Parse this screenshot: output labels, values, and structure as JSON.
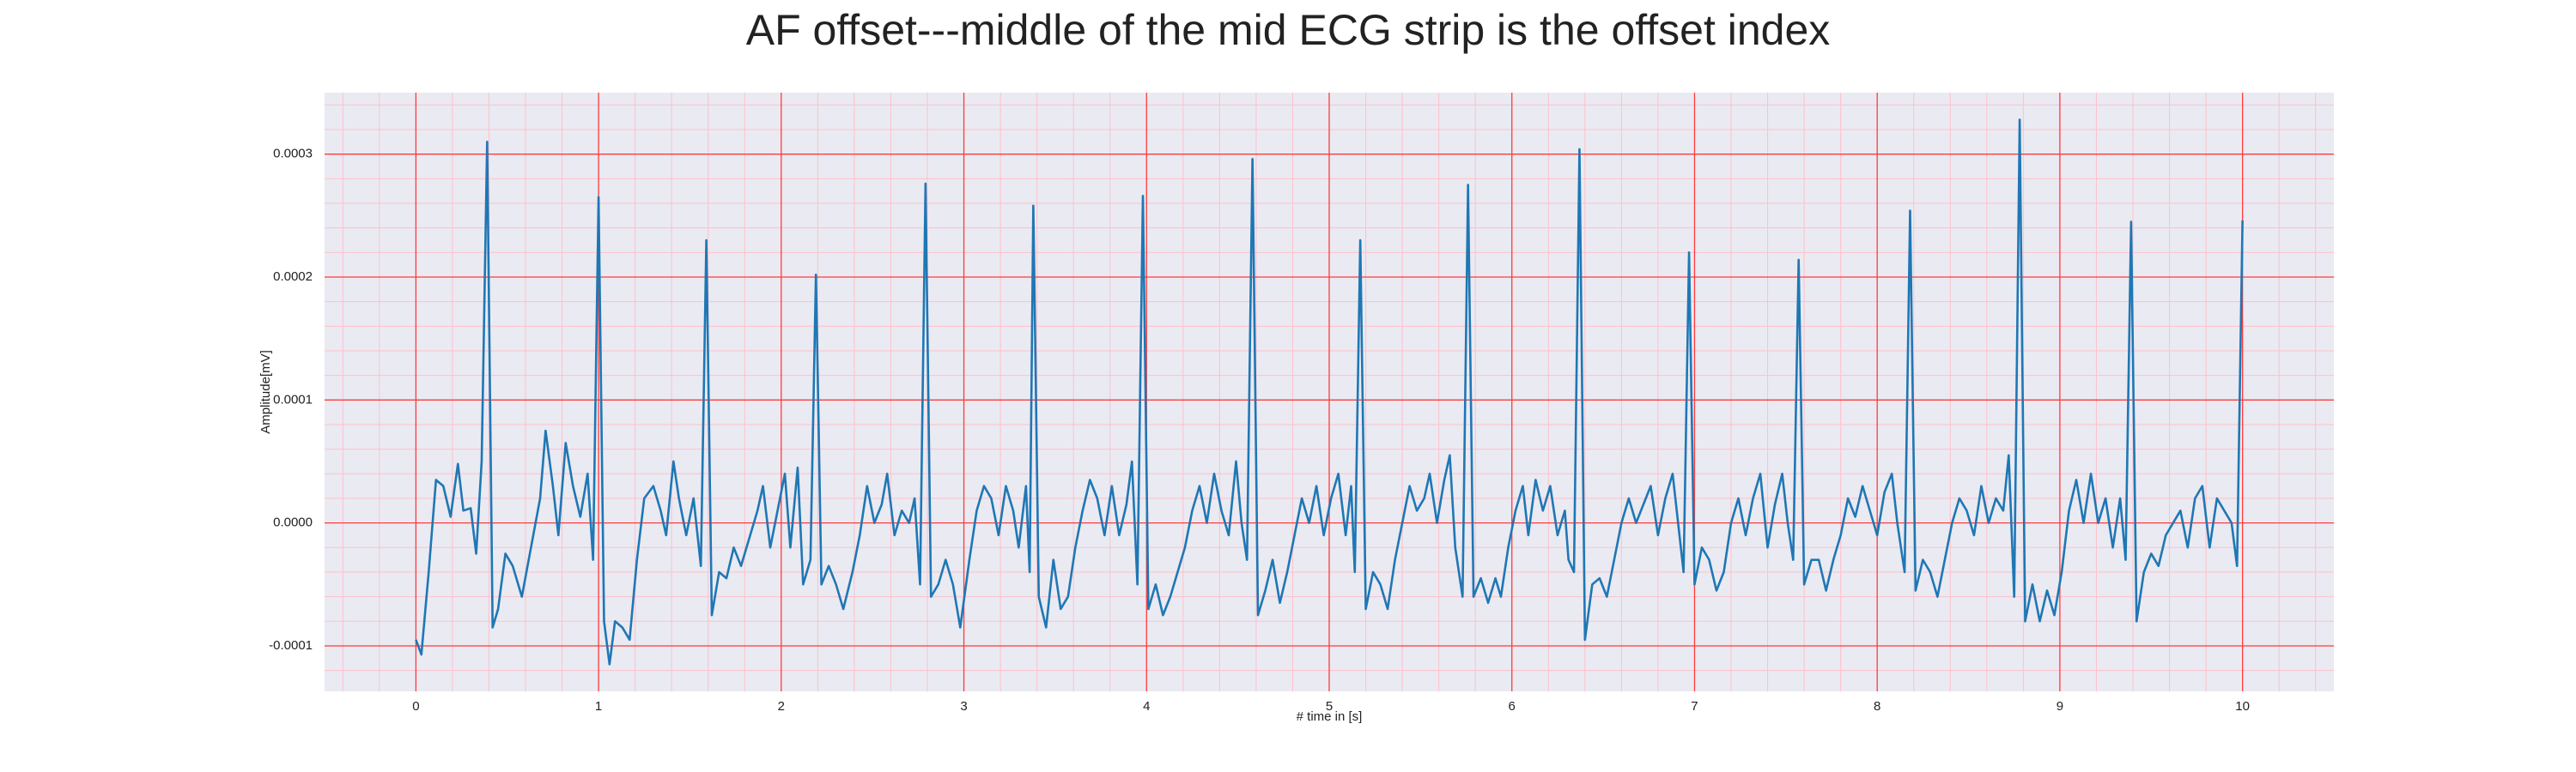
{
  "chart_data": {
    "type": "line",
    "title": "AF offset---middle of the mid ECG strip is the offset index",
    "xlabel": "# time in [s]",
    "ylabel": "Amplitude[mV]",
    "color": "#1f77b4",
    "grid": true,
    "minor_grid": true,
    "xlim": [
      -0.5,
      10.5
    ],
    "ylim": [
      -0.000137,
      0.00035
    ],
    "xticks": [
      0,
      1,
      2,
      3,
      4,
      5,
      6,
      7,
      8,
      9,
      10
    ],
    "yticks": [
      {
        "value": -0.0001,
        "label": "-0.0001"
      },
      {
        "value": 0,
        "label": "0.0000"
      },
      {
        "value": 0.0001,
        "label": "0.0001"
      },
      {
        "value": 0.0002,
        "label": "0.0002"
      },
      {
        "value": 0.0003,
        "label": "0.0003"
      }
    ],
    "x": [
      0.0,
      0.03,
      0.07,
      0.11,
      0.15,
      0.19,
      0.23,
      0.26,
      0.3,
      0.33,
      0.36,
      0.39,
      0.42,
      0.45,
      0.49,
      0.53,
      0.58,
      0.63,
      0.68,
      0.71,
      0.75,
      0.78,
      0.82,
      0.86,
      0.9,
      0.94,
      0.97,
      1.0,
      1.03,
      1.06,
      1.09,
      1.13,
      1.17,
      1.21,
      1.25,
      1.3,
      1.34,
      1.37,
      1.41,
      1.44,
      1.48,
      1.52,
      1.56,
      1.59,
      1.62,
      1.66,
      1.7,
      1.74,
      1.78,
      1.83,
      1.87,
      1.9,
      1.94,
      1.98,
      2.02,
      2.05,
      2.09,
      2.12,
      2.16,
      2.19,
      2.22,
      2.26,
      2.3,
      2.34,
      2.39,
      2.43,
      2.47,
      2.51,
      2.55,
      2.58,
      2.62,
      2.66,
      2.7,
      2.73,
      2.76,
      2.79,
      2.82,
      2.86,
      2.9,
      2.94,
      2.98,
      3.03,
      3.07,
      3.11,
      3.15,
      3.19,
      3.23,
      3.27,
      3.3,
      3.34,
      3.36,
      3.38,
      3.41,
      3.45,
      3.49,
      3.53,
      3.57,
      3.61,
      3.65,
      3.69,
      3.73,
      3.77,
      3.81,
      3.85,
      3.89,
      3.92,
      3.95,
      3.98,
      4.01,
      4.05,
      4.09,
      4.13,
      4.17,
      4.21,
      4.25,
      4.29,
      4.33,
      4.37,
      4.41,
      4.45,
      4.49,
      4.52,
      4.55,
      4.58,
      4.61,
      4.65,
      4.69,
      4.73,
      4.77,
      4.81,
      4.85,
      4.89,
      4.93,
      4.97,
      5.01,
      5.05,
      5.09,
      5.12,
      5.14,
      5.17,
      5.2,
      5.24,
      5.28,
      5.32,
      5.36,
      5.4,
      5.44,
      5.48,
      5.52,
      5.55,
      5.59,
      5.63,
      5.66,
      5.69,
      5.73,
      5.76,
      5.79,
      5.83,
      5.87,
      5.91,
      5.94,
      5.98,
      6.02,
      6.06,
      6.09,
      6.13,
      6.17,
      6.21,
      6.25,
      6.29,
      6.31,
      6.34,
      6.37,
      6.4,
      6.44,
      6.48,
      6.52,
      6.56,
      6.6,
      6.64,
      6.68,
      6.72,
      6.76,
      6.8,
      6.84,
      6.88,
      6.91,
      6.94,
      6.97,
      7.0,
      7.04,
      7.08,
      7.12,
      7.16,
      7.2,
      7.24,
      7.28,
      7.32,
      7.36,
      7.4,
      7.44,
      7.48,
      7.51,
      7.54,
      7.57,
      7.6,
      7.64,
      7.68,
      7.72,
      7.76,
      7.8,
      7.84,
      7.88,
      7.92,
      7.96,
      8.0,
      8.04,
      8.08,
      8.11,
      8.15,
      8.18,
      8.21,
      8.25,
      8.29,
      8.33,
      8.37,
      8.41,
      8.45,
      8.49,
      8.53,
      8.57,
      8.61,
      8.65,
      8.69,
      8.72,
      8.75,
      8.78,
      8.81,
      8.85,
      8.89,
      8.93,
      8.97,
      9.01,
      9.05,
      9.09,
      9.13,
      9.17,
      9.21,
      9.25,
      9.29,
      9.33,
      9.36,
      9.39,
      9.42,
      9.46,
      9.5,
      9.54,
      9.58,
      9.62,
      9.66,
      9.7,
      9.74,
      9.78,
      9.82,
      9.86,
      9.9,
      9.94,
      9.97,
      10.0
    ],
    "values": [
      -9.5e-05,
      -0.000107,
      -4e-05,
      3.5e-05,
      3e-05,
      5e-06,
      4.8e-05,
      1e-05,
      1.2e-05,
      -2.5e-05,
      5e-05,
      0.00031,
      -8.5e-05,
      -7e-05,
      -2.5e-05,
      -3.5e-05,
      -6e-05,
      -2e-05,
      2e-05,
      7.5e-05,
      3e-05,
      -1e-05,
      6.5e-05,
      3e-05,
      5e-06,
      4e-05,
      -3e-05,
      0.000265,
      -8e-05,
      -0.000115,
      -8e-05,
      -8.5e-05,
      -9.5e-05,
      -3e-05,
      2e-05,
      3e-05,
      1e-05,
      -1e-05,
      5e-05,
      2e-05,
      -1e-05,
      2e-05,
      -3.5e-05,
      0.00023,
      -7.5e-05,
      -4e-05,
      -4.5e-05,
      -2e-05,
      -3.5e-05,
      -1e-05,
      1e-05,
      3e-05,
      -2e-05,
      1e-05,
      4e-05,
      -2e-05,
      4.5e-05,
      -5e-05,
      -3e-05,
      0.000202,
      -5e-05,
      -3.5e-05,
      -5e-05,
      -7e-05,
      -4e-05,
      -1e-05,
      3e-05,
      0.0,
      1.5e-05,
      4e-05,
      -1e-05,
      1e-05,
      0.0,
      2e-05,
      -5e-05,
      0.000276,
      -6e-05,
      -5e-05,
      -3e-05,
      -5e-05,
      -8.5e-05,
      -3e-05,
      1e-05,
      3e-05,
      2e-05,
      -1e-05,
      3e-05,
      1e-05,
      -2e-05,
      3e-05,
      -4e-05,
      0.000258,
      -6e-05,
      -8.5e-05,
      -3e-05,
      -7e-05,
      -6e-05,
      -2e-05,
      1e-05,
      3.5e-05,
      2e-05,
      -1e-05,
      3e-05,
      -1e-05,
      1.5e-05,
      5e-05,
      -5e-05,
      0.000266,
      -7e-05,
      -5e-05,
      -7.5e-05,
      -6e-05,
      -4e-05,
      -2e-05,
      1e-05,
      3e-05,
      0.0,
      4e-05,
      1e-05,
      -1e-05,
      5e-05,
      0.0,
      -3e-05,
      0.000296,
      -7.5e-05,
      -5.5e-05,
      -3e-05,
      -6.5e-05,
      -4e-05,
      -1e-05,
      2e-05,
      0.0,
      3e-05,
      -1e-05,
      2e-05,
      4e-05,
      -1e-05,
      3e-05,
      -4e-05,
      0.00023,
      -7e-05,
      -4e-05,
      -5e-05,
      -7e-05,
      -3e-05,
      0.0,
      3e-05,
      1e-05,
      2e-05,
      4e-05,
      0.0,
      3.5e-05,
      5.5e-05,
      -2e-05,
      -6e-05,
      0.000275,
      -6e-05,
      -4.5e-05,
      -6.5e-05,
      -4.5e-05,
      -6e-05,
      -2e-05,
      1e-05,
      3e-05,
      -1e-05,
      3.5e-05,
      1e-05,
      3e-05,
      -1e-05,
      1e-05,
      -3e-05,
      -4e-05,
      0.000304,
      -9.5e-05,
      -5e-05,
      -4.5e-05,
      -6e-05,
      -3e-05,
      0.0,
      2e-05,
      0.0,
      1.5e-05,
      3e-05,
      -1e-05,
      2e-05,
      4e-05,
      0.0,
      -4e-05,
      0.00022,
      -5e-05,
      -2e-05,
      -3e-05,
      -5.5e-05,
      -4e-05,
      0.0,
      2e-05,
      -1e-05,
      2e-05,
      4e-05,
      -2e-05,
      1.5e-05,
      4e-05,
      0.0,
      -3e-05,
      0.000214,
      -5e-05,
      -3e-05,
      -3e-05,
      -5.5e-05,
      -3e-05,
      -1e-05,
      2e-05,
      5e-06,
      3e-05,
      1e-05,
      -1e-05,
      2.5e-05,
      4e-05,
      0.0,
      -4e-05,
      0.000254,
      -5.5e-05,
      -3e-05,
      -4e-05,
      -6e-05,
      -3e-05,
      0.0,
      2e-05,
      1e-05,
      -1e-05,
      3e-05,
      0.0,
      2e-05,
      1e-05,
      5.5e-05,
      -6e-05,
      0.000328,
      -8e-05,
      -5e-05,
      -8e-05,
      -5.5e-05,
      -7.5e-05,
      -4e-05,
      1e-05,
      3.5e-05,
      0.0,
      4e-05,
      0.0,
      2e-05,
      -2e-05,
      2e-05,
      -3e-05,
      0.000245,
      -8e-05,
      -4e-05,
      -2.5e-05,
      -3.5e-05,
      -1e-05,
      0.0,
      1e-05,
      -2e-05,
      2e-05,
      3e-05,
      -2e-05,
      2e-05,
      1e-05,
      0.0,
      -3.5e-05,
      0.000246
    ]
  }
}
